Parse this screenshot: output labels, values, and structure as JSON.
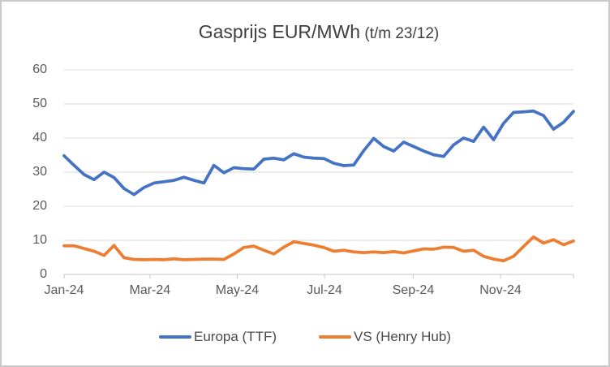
{
  "window": {
    "background_color": "#ffffff",
    "border_color": "#c9c9c9"
  },
  "title": {
    "main": "Gasprijs EUR/MWh",
    "suffix": " (t/m 23/12)"
  },
  "chart_data": {
    "type": "line",
    "title": "Gasprijs EUR/MWh (t/m 23/12)",
    "ylabel": "",
    "xlabel": "",
    "ylim": [
      0,
      60
    ],
    "y_ticks": [
      0,
      10,
      20,
      30,
      40,
      50,
      60
    ],
    "x_tick_labels": [
      "Jan-24",
      "Mar-24",
      "May-24",
      "Jul-24",
      "Sep-24",
      "Nov-24"
    ],
    "grid": "horizontal",
    "gridline_color": "#d9d9d9",
    "axis_line_color": "#c6c6c6",
    "label_color": "#595959",
    "legend_position": "bottom",
    "period": "weekly, Jan-24 t/m 23/12",
    "series": [
      {
        "name": "Europa (TTF)",
        "color": "#4472C4",
        "values": [
          34.8,
          32.0,
          29.3,
          27.8,
          30.0,
          28.4,
          25.2,
          23.4,
          25.5,
          26.8,
          27.2,
          27.6,
          28.5,
          27.6,
          26.8,
          32.0,
          29.8,
          31.3,
          31.0,
          30.9,
          33.8,
          34.1,
          33.6,
          35.4,
          34.4,
          34.1,
          34.0,
          32.6,
          31.9,
          32.1,
          36.3,
          39.9,
          37.5,
          36.2,
          38.8,
          37.5,
          36.2,
          35.1,
          34.6,
          38.0,
          40.0,
          39.0,
          43.2,
          39.5,
          44.3,
          47.5,
          47.7,
          47.9,
          46.6,
          42.6,
          44.6,
          47.8
        ]
      },
      {
        "name": "VS (Henry Hub)",
        "color": "#ED7D31",
        "values": [
          8.4,
          8.4,
          7.6,
          6.8,
          5.6,
          8.5,
          4.9,
          4.4,
          4.3,
          4.4,
          4.3,
          4.6,
          4.3,
          4.4,
          4.5,
          4.5,
          4.4,
          6.0,
          7.9,
          8.3,
          7.1,
          6.0,
          8.0,
          9.6,
          9.1,
          8.6,
          7.9,
          6.8,
          7.1,
          6.6,
          6.4,
          6.6,
          6.4,
          6.7,
          6.3,
          6.9,
          7.5,
          7.4,
          8.0,
          7.9,
          6.8,
          7.1,
          5.3,
          4.5,
          4.0,
          5.3,
          8.2,
          11.0,
          9.2,
          10.2,
          8.7,
          9.8
        ]
      }
    ]
  }
}
